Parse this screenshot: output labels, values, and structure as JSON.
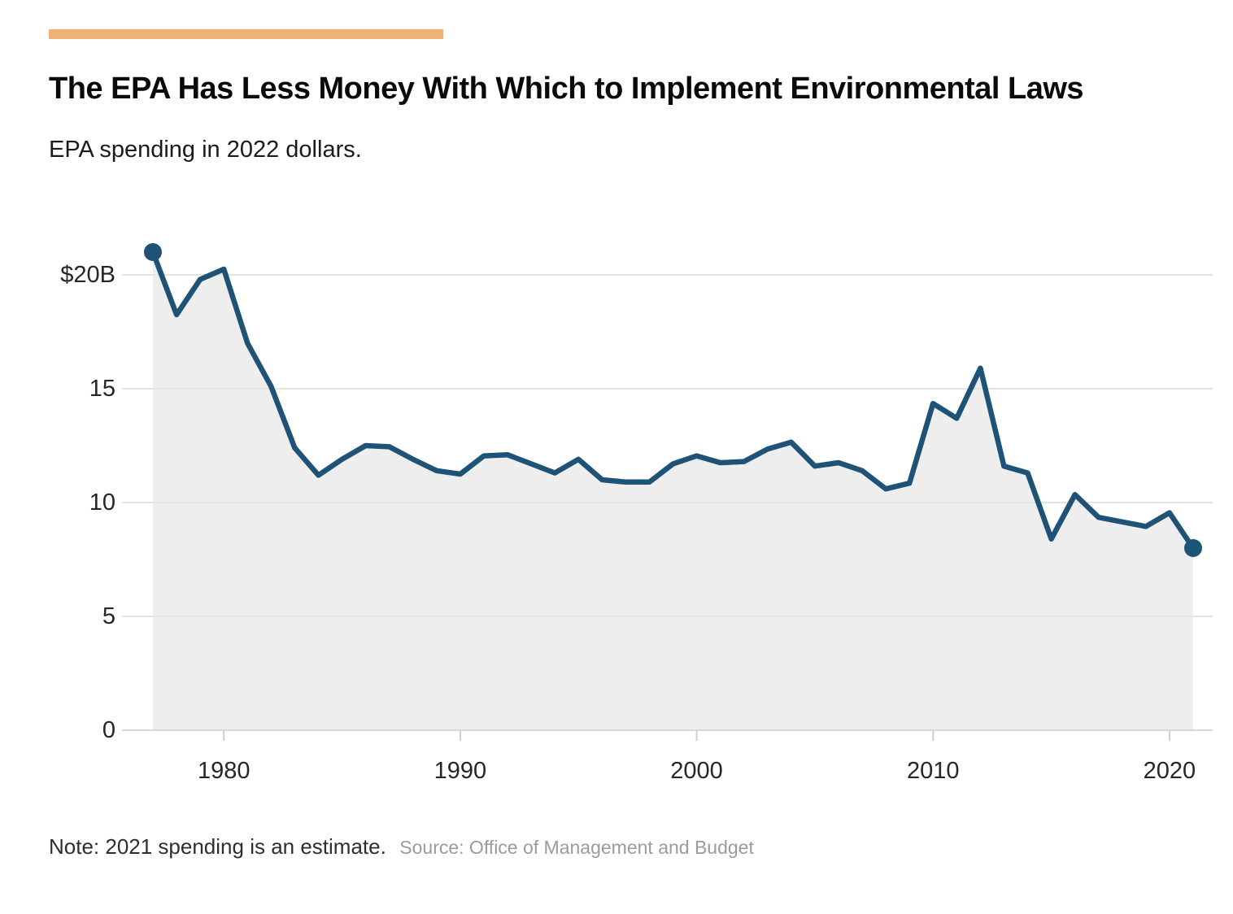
{
  "theme": {
    "accent_color": "#f0b077",
    "line_color": "#1e5276",
    "fill_color": "#eeeeee",
    "grid_color": "#e4e4e4",
    "baseline_color": "#d7d7d7",
    "tick_color": "#cfcfcf"
  },
  "header": {
    "title": "The EPA Has Less Money With Which to Implement Environmental Laws",
    "subtitle": "EPA spending in 2022 dollars."
  },
  "footer": {
    "note": "Note: 2021 spending is an estimate.",
    "source": "Source: Office of Management and Budget"
  },
  "chart_data": {
    "type": "area",
    "title": "The EPA Has Less Money With Which to Implement Environmental Laws",
    "subtitle": "EPA spending in 2022 dollars.",
    "x": [
      1977,
      1978,
      1979,
      1980,
      1981,
      1982,
      1983,
      1984,
      1985,
      1986,
      1987,
      1988,
      1989,
      1990,
      1991,
      1992,
      1993,
      1994,
      1995,
      1996,
      1997,
      1998,
      1999,
      2000,
      2001,
      2002,
      2003,
      2004,
      2005,
      2006,
      2007,
      2008,
      2009,
      2010,
      2011,
      2012,
      2013,
      2014,
      2015,
      2016,
      2017,
      2018,
      2019,
      2020,
      2021
    ],
    "values": [
      21.0,
      18.25,
      19.8,
      20.25,
      17.0,
      15.1,
      12.4,
      11.2,
      11.9,
      12.5,
      12.45,
      11.9,
      11.4,
      11.25,
      12.05,
      12.1,
      11.7,
      11.3,
      11.9,
      11.0,
      10.9,
      10.9,
      11.7,
      12.05,
      11.75,
      11.8,
      12.35,
      12.65,
      11.6,
      11.75,
      11.4,
      10.6,
      10.85,
      14.35,
      13.7,
      15.9,
      11.6,
      11.3,
      8.4,
      10.35,
      9.35,
      9.15,
      8.95,
      9.55,
      8.0
    ],
    "y_ticks": [
      {
        "value": 20,
        "label": "$20B"
      },
      {
        "value": 15,
        "label": "15"
      },
      {
        "value": 10,
        "label": "10"
      },
      {
        "value": 5,
        "label": "5"
      },
      {
        "value": 0,
        "label": "0"
      }
    ],
    "x_ticks": [
      {
        "value": 1980,
        "label": "1980"
      },
      {
        "value": 1990,
        "label": "1990"
      },
      {
        "value": 2000,
        "label": "2000"
      },
      {
        "value": 2010,
        "label": "2010"
      },
      {
        "value": 2020,
        "label": "2020"
      }
    ],
    "xlim": [
      1977,
      2021
    ],
    "ylim": [
      0,
      21.5
    ],
    "grid": true,
    "legend": false,
    "endpoint_dots": [
      1977,
      2021
    ]
  }
}
